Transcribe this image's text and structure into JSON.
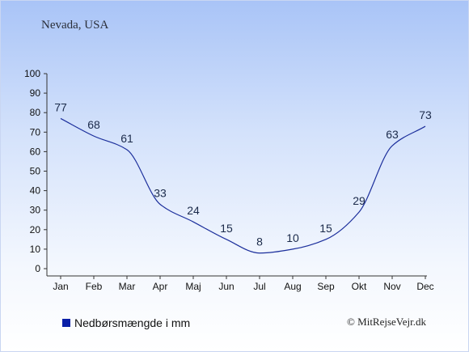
{
  "region_title": "Nevada, USA",
  "legend": {
    "label": "Nedbørsmængde i mm",
    "color": "#0a1fa8"
  },
  "credit": "© MitRejseVejr.dk",
  "colors": {
    "line": "#1c2f9c",
    "axis": "#333333",
    "label": "#1b2a4a"
  },
  "chart_data": {
    "type": "line",
    "title": "",
    "xlabel": "",
    "ylabel": "",
    "categories": [
      "Jan",
      "Feb",
      "Mar",
      "Apr",
      "Maj",
      "Jun",
      "Jul",
      "Aug",
      "Sep",
      "Okt",
      "Nov",
      "Dec"
    ],
    "series": [
      {
        "name": "Nedbørsmængde i mm",
        "values": [
          77,
          68,
          61,
          33,
          24,
          15,
          8,
          10,
          15,
          29,
          63,
          73
        ]
      }
    ],
    "ylim": [
      0,
      100
    ],
    "yticks": [
      0,
      10,
      20,
      30,
      40,
      50,
      60,
      70,
      80,
      90,
      100
    ],
    "grid": false,
    "data_labels": true,
    "legend_position": "bottom-left"
  }
}
